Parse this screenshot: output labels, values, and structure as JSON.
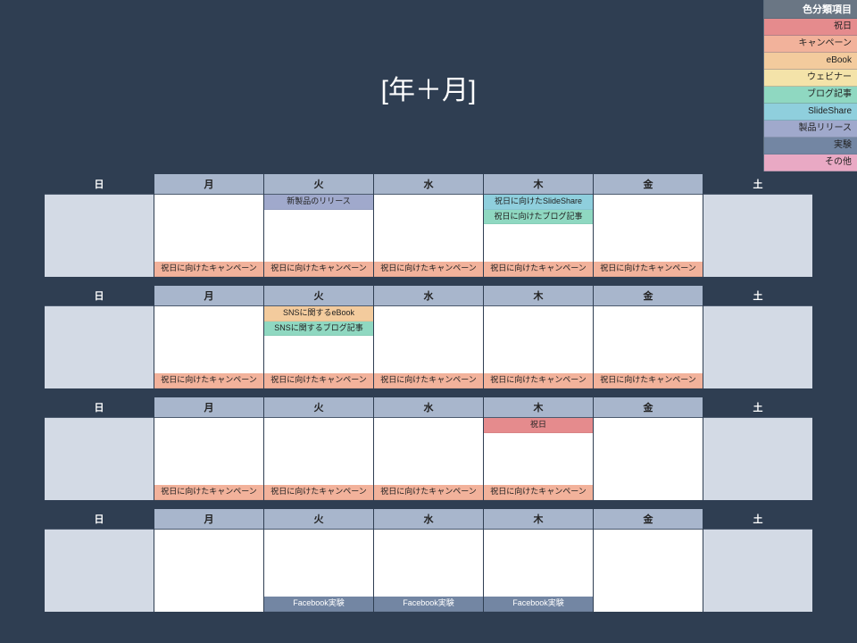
{
  "title": "[年＋月]",
  "colors": {
    "frame_bg": "#2f3e52",
    "weekend_cell": "#d3dae5",
    "weekday_header": "#a8b6cc",
    "legend_header": "#6a7684"
  },
  "legend": {
    "header": "色分類項目",
    "items": [
      {
        "label": "祝日",
        "color": "#e58b8d"
      },
      {
        "label": "キャンペーン",
        "color": "#f2b29b"
      },
      {
        "label": "eBook",
        "color": "#f3cb9d"
      },
      {
        "label": "ウェビナー",
        "color": "#f4e3a9"
      },
      {
        "label": "ブログ記事",
        "color": "#8fd8c1"
      },
      {
        "label": "SlideShare",
        "color": "#8fcfdd"
      },
      {
        "label": "製品リリース",
        "color": "#a0a9cc"
      },
      {
        "label": "実験",
        "color": "#7386a3"
      },
      {
        "label": "その他",
        "color": "#e9a9c4"
      }
    ]
  },
  "day_names": [
    "日",
    "月",
    "火",
    "水",
    "木",
    "金",
    "土"
  ],
  "event_colors": {
    "campaign": "#f2b29b",
    "release": "#a0a9cc",
    "slideshare": "#8fcfdd",
    "blog": "#8fd8c1",
    "ebook": "#f3cb9d",
    "holiday": "#e58b8d",
    "experiment": "#7386a3"
  },
  "weeks": [
    {
      "days": [
        {
          "weekend": true,
          "top": [],
          "bottom": []
        },
        {
          "weekend": false,
          "top": [],
          "bottom": [
            {
              "kind": "campaign",
              "text": "祝日に向けたキャンペーン"
            }
          ]
        },
        {
          "weekend": false,
          "top": [
            {
              "kind": "release",
              "text": "新製品のリリース"
            }
          ],
          "bottom": [
            {
              "kind": "campaign",
              "text": "祝日に向けたキャンペーン"
            }
          ]
        },
        {
          "weekend": false,
          "top": [],
          "bottom": [
            {
              "kind": "campaign",
              "text": "祝日に向けたキャンペーン"
            }
          ]
        },
        {
          "weekend": false,
          "top": [
            {
              "kind": "slideshare",
              "text": "祝日に向けたSlideShare"
            },
            {
              "kind": "blog",
              "text": "祝日に向けたブログ記事"
            }
          ],
          "bottom": [
            {
              "kind": "campaign",
              "text": "祝日に向けたキャンペーン"
            }
          ]
        },
        {
          "weekend": false,
          "top": [],
          "bottom": [
            {
              "kind": "campaign",
              "text": "祝日に向けたキャンペーン"
            }
          ]
        },
        {
          "weekend": true,
          "top": [],
          "bottom": []
        }
      ]
    },
    {
      "days": [
        {
          "weekend": true,
          "top": [],
          "bottom": []
        },
        {
          "weekend": false,
          "top": [],
          "bottom": [
            {
              "kind": "campaign",
              "text": "祝日に向けたキャンペーン"
            }
          ]
        },
        {
          "weekend": false,
          "top": [
            {
              "kind": "ebook",
              "text": "SNSに関するeBook"
            },
            {
              "kind": "blog",
              "text": "SNSに関するブログ記事"
            }
          ],
          "bottom": [
            {
              "kind": "campaign",
              "text": "祝日に向けたキャンペーン"
            }
          ]
        },
        {
          "weekend": false,
          "top": [],
          "bottom": [
            {
              "kind": "campaign",
              "text": "祝日に向けたキャンペーン"
            }
          ]
        },
        {
          "weekend": false,
          "top": [],
          "bottom": [
            {
              "kind": "campaign",
              "text": "祝日に向けたキャンペーン"
            }
          ]
        },
        {
          "weekend": false,
          "top": [],
          "bottom": [
            {
              "kind": "campaign",
              "text": "祝日に向けたキャンペーン"
            }
          ]
        },
        {
          "weekend": true,
          "top": [],
          "bottom": []
        }
      ]
    },
    {
      "days": [
        {
          "weekend": true,
          "top": [],
          "bottom": []
        },
        {
          "weekend": false,
          "top": [],
          "bottom": [
            {
              "kind": "campaign",
              "text": "祝日に向けたキャンペーン"
            }
          ]
        },
        {
          "weekend": false,
          "top": [],
          "bottom": [
            {
              "kind": "campaign",
              "text": "祝日に向けたキャンペーン"
            }
          ]
        },
        {
          "weekend": false,
          "top": [],
          "bottom": [
            {
              "kind": "campaign",
              "text": "祝日に向けたキャンペーン"
            }
          ]
        },
        {
          "weekend": false,
          "top": [
            {
              "kind": "holiday",
              "text": "祝日"
            }
          ],
          "bottom": [
            {
              "kind": "campaign",
              "text": "祝日に向けたキャンペーン"
            }
          ]
        },
        {
          "weekend": false,
          "top": [],
          "bottom": []
        },
        {
          "weekend": true,
          "top": [],
          "bottom": []
        }
      ]
    },
    {
      "days": [
        {
          "weekend": true,
          "top": [],
          "bottom": []
        },
        {
          "weekend": false,
          "top": [],
          "bottom": []
        },
        {
          "weekend": false,
          "top": [],
          "bottom": [
            {
              "kind": "experiment",
              "text": "Facebook実験"
            }
          ]
        },
        {
          "weekend": false,
          "top": [],
          "bottom": [
            {
              "kind": "experiment",
              "text": "Facebook実験"
            }
          ]
        },
        {
          "weekend": false,
          "top": [],
          "bottom": [
            {
              "kind": "experiment",
              "text": "Facebook実験"
            }
          ]
        },
        {
          "weekend": false,
          "top": [],
          "bottom": []
        },
        {
          "weekend": true,
          "top": [],
          "bottom": []
        }
      ]
    }
  ]
}
